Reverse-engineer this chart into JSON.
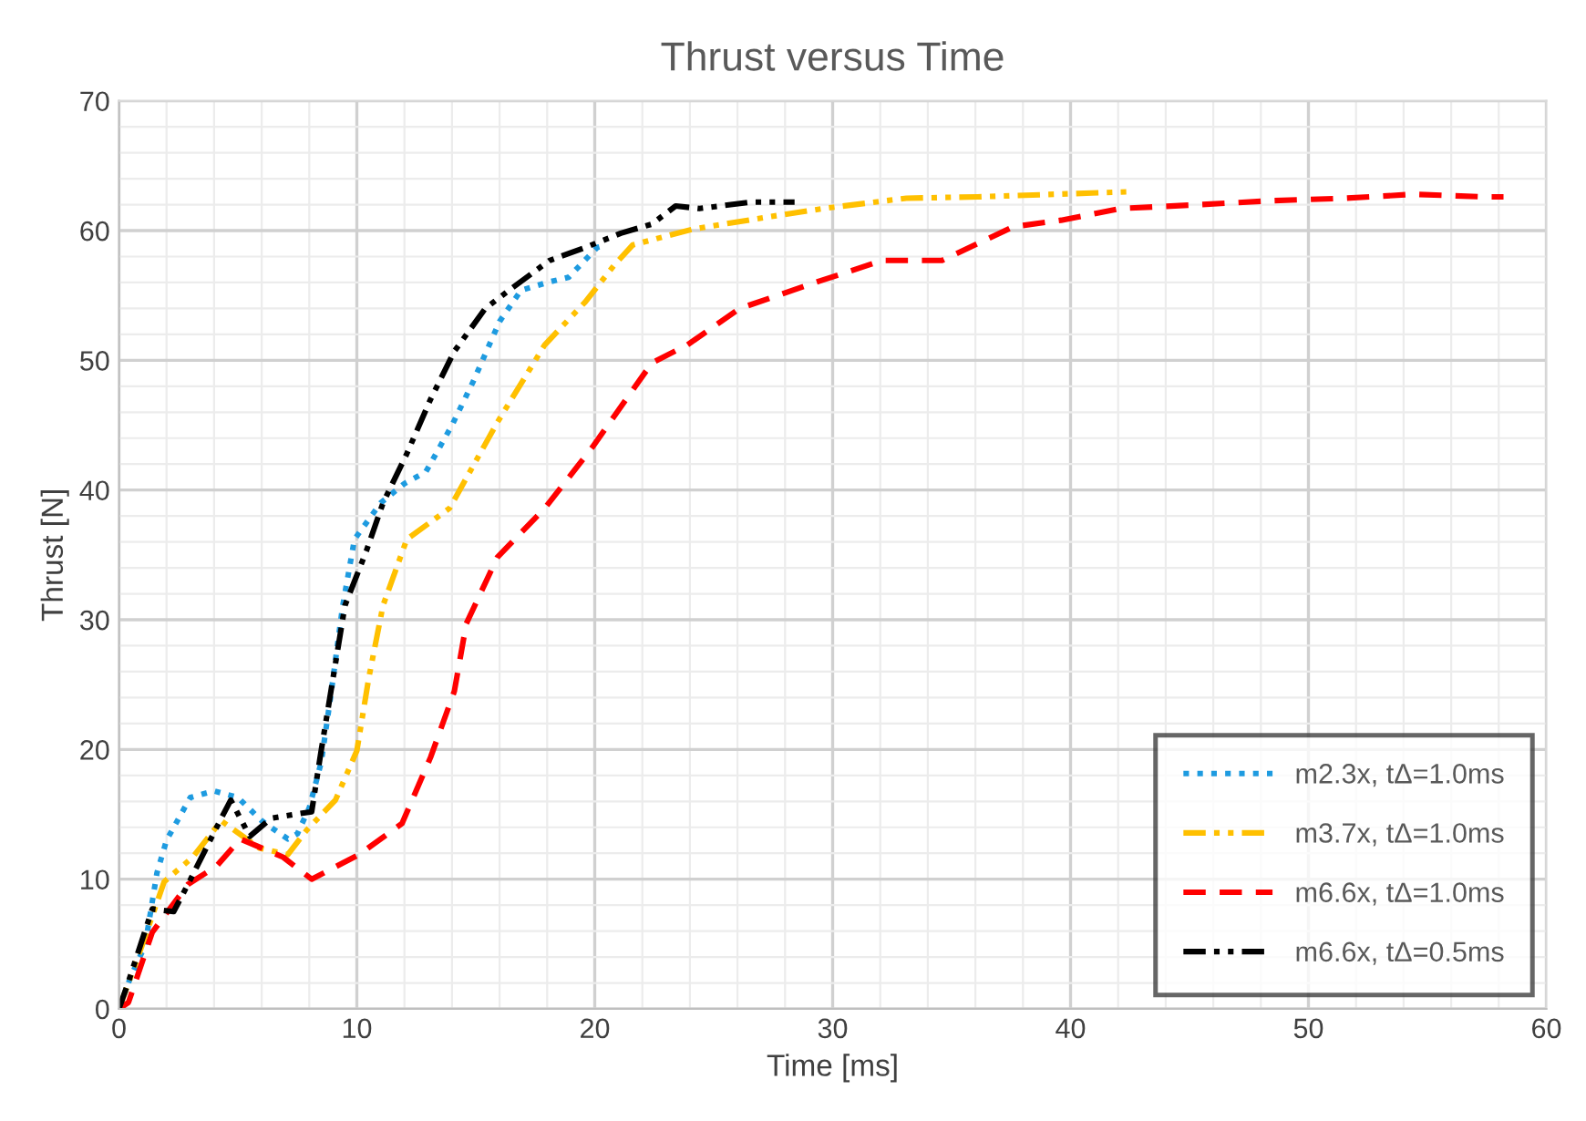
{
  "chart_data": {
    "type": "line",
    "title": "Thrust versus Time",
    "xlabel": "Time [ms]",
    "ylabel": "Thrust [N]",
    "xlim": [
      0,
      60
    ],
    "ylim": [
      0,
      70
    ],
    "xticks": [
      0,
      {
        "value": 2,
        "label": null
      },
      {
        "value": 4,
        "label": null
      },
      {
        "value": 6,
        "label": null
      },
      {
        "value": 8,
        "label": null
      },
      10,
      {
        "value": 12,
        "label": null
      },
      {
        "value": 14,
        "label": null
      },
      {
        "value": 16,
        "label": null
      },
      {
        "value": 18,
        "label": null
      },
      20,
      {
        "value": 22,
        "label": null
      },
      {
        "value": 24,
        "label": null
      },
      {
        "value": 26,
        "label": null
      },
      {
        "value": 28,
        "label": null
      },
      30,
      {
        "value": 32,
        "label": null
      },
      {
        "value": 34,
        "label": null
      },
      {
        "value": 36,
        "label": null
      },
      {
        "value": 38,
        "label": null
      },
      40,
      {
        "value": 42,
        "label": null
      },
      {
        "value": 44,
        "label": null
      },
      {
        "value": 46,
        "label": null
      },
      {
        "value": 48,
        "label": null
      },
      50,
      {
        "value": 52,
        "label": null
      },
      {
        "value": 54,
        "label": null
      },
      {
        "value": 56,
        "label": null
      },
      {
        "value": 58,
        "label": null
      },
      60
    ],
    "yticks": [
      0,
      {
        "value": 2,
        "label": null
      },
      {
        "value": 4,
        "label": null
      },
      {
        "value": 6,
        "label": null
      },
      {
        "value": 8,
        "label": null
      },
      10,
      {
        "value": 12,
        "label": null
      },
      {
        "value": 14,
        "label": null
      },
      {
        "value": 16,
        "label": null
      },
      {
        "value": 18,
        "label": null
      },
      20,
      {
        "value": 22,
        "label": null
      },
      {
        "value": 24,
        "label": null
      },
      {
        "value": 26,
        "label": null
      },
      {
        "value": 28,
        "label": null
      },
      30,
      {
        "value": 32,
        "label": null
      },
      {
        "value": 34,
        "label": null
      },
      {
        "value": 36,
        "label": null
      },
      {
        "value": 38,
        "label": null
      },
      40,
      {
        "value": 42,
        "label": null
      },
      {
        "value": 44,
        "label": null
      },
      {
        "value": 46,
        "label": null
      },
      {
        "value": 48,
        "label": null
      },
      50,
      {
        "value": 52,
        "label": null
      },
      {
        "value": 54,
        "label": null
      },
      {
        "value": 56,
        "label": null
      },
      {
        "value": 58,
        "label": null
      },
      60,
      {
        "value": 62,
        "label": null
      },
      {
        "value": 64,
        "label": null
      },
      {
        "value": 66,
        "label": null
      },
      {
        "value": 68,
        "label": null
      },
      70
    ],
    "grid": true,
    "legend": "bottom right",
    "marker": "none",
    "series": [
      {
        "name": "m2.3x, tΔ=1.0ms",
        "color": "#1e9be0",
        "line_style": "dotted",
        "x": [
          0,
          0.5,
          1.1,
          1.6,
          2,
          3,
          4,
          5,
          6,
          7.1,
          7.5,
          8,
          8.5,
          8.9,
          9.4,
          9.9,
          11,
          12,
          12.9,
          14,
          14.9,
          16,
          16.9,
          18,
          18.9,
          20.1,
          20.5
        ],
        "values": [
          0,
          2.5,
          4.9,
          10.5,
          13,
          16.3,
          16.8,
          16.3,
          14.5,
          13.1,
          13.5,
          15.5,
          19,
          24.1,
          31,
          36.2,
          39,
          40.5,
          41.4,
          45,
          48.4,
          53,
          55.4,
          56,
          56.4,
          58.7,
          58.9
        ]
      },
      {
        "name": "m3.7x, tΔ=1.0ms",
        "color": "#ffc000",
        "line_style": "dashdot",
        "x": [
          0,
          0.8,
          1.9,
          3.1,
          4.3,
          5.9,
          7.1,
          7.9,
          9.1,
          10,
          10.5,
          11.1,
          12.1,
          13.9,
          15.9,
          17.9,
          19.6,
          20.8,
          21.6,
          24.1,
          27.1,
          29.6,
          33.1,
          36.1,
          40.9,
          42.6
        ],
        "values": [
          0,
          4,
          9.8,
          11.7,
          14.5,
          12.4,
          11.9,
          13.8,
          16.1,
          19.9,
          25.5,
          31.1,
          36.2,
          38.6,
          45.2,
          51.2,
          54.5,
          57.3,
          58.9,
          60.1,
          61,
          61.7,
          62.5,
          62.6,
          62.9,
          63
        ]
      },
      {
        "name": "m6.6x, tΔ=1.0ms",
        "color": "#ff0000",
        "line_style": "dashed",
        "x": [
          0,
          0.4,
          1.4,
          2.9,
          4.1,
          5.1,
          6.9,
          8.1,
          10.1,
          11.9,
          13.1,
          14.1,
          14.6,
          15.9,
          17.9,
          19.9,
          22.4,
          23.9,
          26.1,
          29.1,
          32.1,
          34.6,
          37.6,
          39.6,
          42.1,
          45.4,
          48.4,
          51.6,
          54.4,
          57.4,
          58.2
        ],
        "values": [
          0,
          0.5,
          5.9,
          9.6,
          11,
          13.1,
          11.7,
          10,
          11.9,
          14.3,
          19.4,
          24.5,
          29.7,
          34.8,
          38.6,
          43.3,
          49.8,
          51.2,
          54,
          55.9,
          57.7,
          57.7,
          60.3,
          60.8,
          61.7,
          62,
          62.3,
          62.5,
          62.8,
          62.6,
          62.6
        ]
      },
      {
        "name": "m6.6x, tΔ=0.5ms",
        "color": "#000000",
        "line_style": "dashdot",
        "x": [
          0,
          0.4,
          1.4,
          2.3,
          2.9,
          4.3,
          4.7,
          5.5,
          6.4,
          7.4,
          8.1,
          8.5,
          9,
          9.5,
          10.4,
          11.1,
          12.1,
          13.1,
          14.1,
          15.4,
          16.4,
          18.1,
          19.6,
          21.1,
          22.4,
          23.4,
          24.4,
          26.6,
          28.4
        ],
        "values": [
          0,
          2.1,
          7.7,
          7.5,
          9.6,
          14.7,
          16.1,
          13.3,
          14.7,
          15,
          15.2,
          19.9,
          25.5,
          31.1,
          35.3,
          39,
          42.8,
          47,
          50.7,
          54,
          55.4,
          57.7,
          58.7,
          59.8,
          60.5,
          61.9,
          61.7,
          62.2,
          62.2
        ]
      }
    ]
  }
}
